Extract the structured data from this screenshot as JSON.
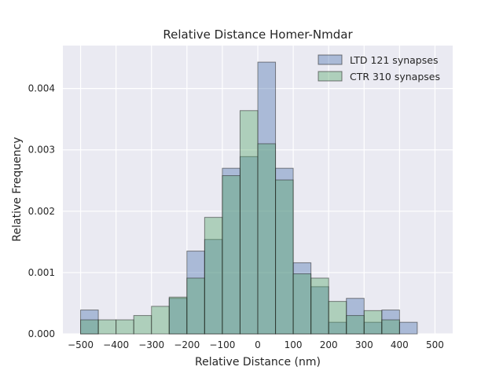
{
  "chart_data": {
    "type": "bar",
    "title": "Relative Distance Homer-Nmdar",
    "xlabel": "Relative Distance (nm)",
    "ylabel": "Relative Frequency",
    "xlim": [
      -550,
      550
    ],
    "ylim": [
      0,
      0.0047
    ],
    "xticks": [
      -500,
      -400,
      -300,
      -200,
      -100,
      0,
      100,
      200,
      300,
      400,
      500
    ],
    "xtick_labels": [
      "−500",
      "−400",
      "−300",
      "−200",
      "−100",
      "0",
      "100",
      "200",
      "300",
      "400",
      "500"
    ],
    "yticks": [
      0,
      0.001,
      0.002,
      0.003,
      0.004
    ],
    "ytick_labels": [
      "0.000",
      "0.001",
      "0.002",
      "0.003",
      "0.004"
    ],
    "bin_edges": [
      -500,
      -450,
      -400,
      -350,
      -300,
      -250,
      -200,
      -150,
      -100,
      -50,
      0,
      50,
      100,
      150,
      200,
      250,
      300,
      350,
      400,
      450
    ],
    "grid": true,
    "legend_position": "top-right",
    "series": [
      {
        "name": "LTD 121 synapses",
        "color": "#4c72b0",
        "values": [
          0.00039,
          0,
          0,
          0,
          0,
          0.00058,
          0.00135,
          0.00154,
          0.0027,
          0.00289,
          0.00443,
          0.0027,
          0.00116,
          0.00077,
          0.00019,
          0.00058,
          0.00019,
          0.00039,
          0.00019
        ]
      },
      {
        "name": "CTR 310 synapses",
        "color": "#55a868",
        "values": [
          0.00023,
          0.00023,
          0.00023,
          0.0003,
          0.00045,
          0.0006,
          0.00091,
          0.0019,
          0.00258,
          0.00364,
          0.0031,
          0.00251,
          0.00098,
          0.00091,
          0.00053,
          0.0003,
          0.00038,
          0.00023,
          0
        ]
      }
    ]
  }
}
